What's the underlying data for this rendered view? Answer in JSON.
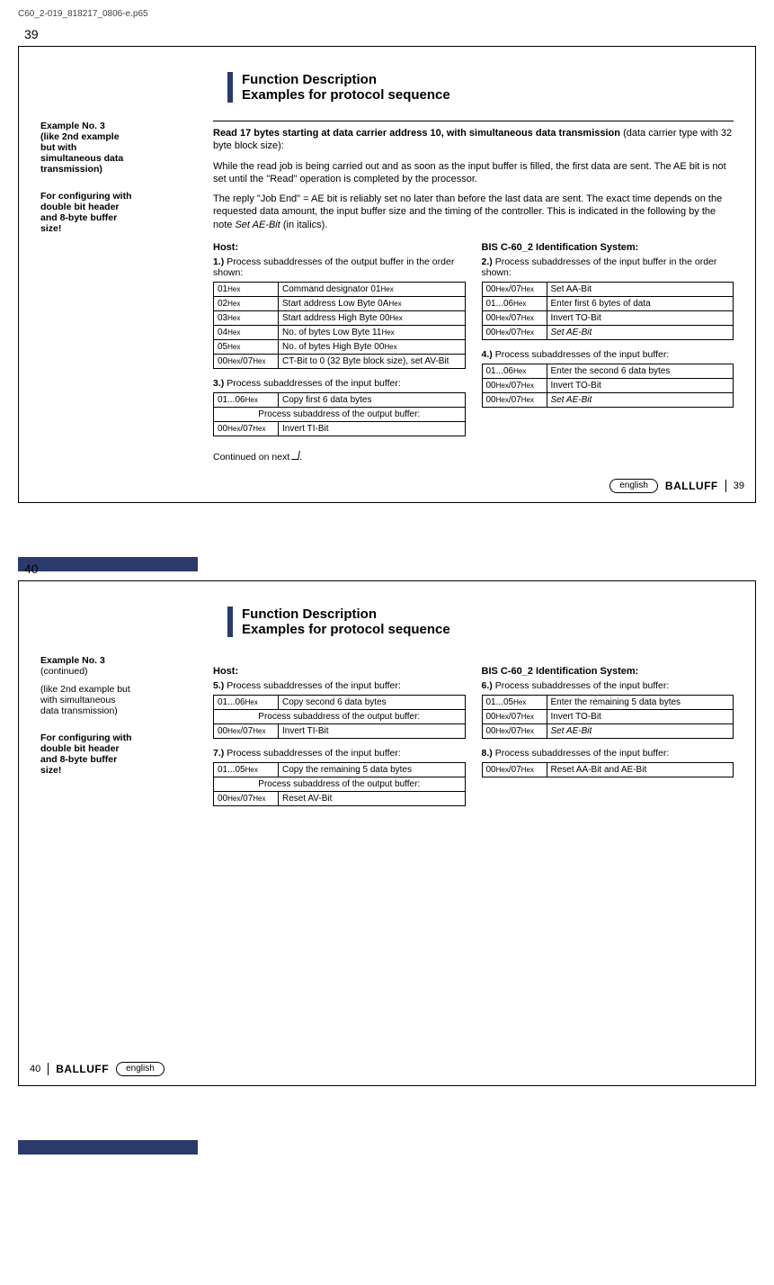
{
  "doc_header": "C60_2-019_818217_0806-e.p65",
  "colors": {
    "accent": "#2a3a6a",
    "text": "#000000",
    "bg": "#ffffff"
  },
  "page39": {
    "page_number": "39",
    "title_1": "Function Description",
    "title_2": "Examples for protocol sequence",
    "side_block_1_lines": [
      "Example No. 3",
      "(like 2nd example",
      "but with",
      "simultaneous data",
      "transmission)"
    ],
    "side_block_2_lines": [
      "For configuring with",
      "double bit header",
      "and 8-byte buffer",
      "size!"
    ],
    "intro_bold": "Read 17 bytes starting at data carrier address 10, with simultaneous data transmission",
    "intro_bold_sub": "(data carrier type with 32 byte block size):",
    "intro_p1": "While the read job is being carried out and as soon as the input buffer is filled, the first data are sent. The AE bit is not set until the \"Read\" operation is completed by the processor.",
    "intro_p2_a": "The reply \"Job End\" = AE bit is reliably set no later than before the last data are sent. The exact time depends on the requested data amount, the input buffer size and the timing of the controller. This is indicated in the following by the note ",
    "intro_p2_ital": "Set AE-Bit",
    "intro_p2_b": " (in italics).",
    "host_heading": "Host:",
    "sys_heading": "BIS C-60_2 Identification System:",
    "step1_label": "1.)  Process subaddresses of the output buffer in the order shown:",
    "step1_rows": [
      [
        "01Hex",
        "Command designator 01Hex"
      ],
      [
        "02Hex",
        "Start address Low Byte 0AHex"
      ],
      [
        "03Hex",
        "Start address High Byte 00Hex"
      ],
      [
        "04Hex",
        "No. of bytes Low Byte 11Hex"
      ],
      [
        "05Hex",
        "No. of bytes High Byte 00Hex"
      ],
      [
        "00Hex/07Hex",
        "CT-Bit to 0 (32 Byte block size), set AV-Bit"
      ]
    ],
    "step2_label": "2.)  Process subaddresses of the input buffer in the order shown:",
    "step2_rows": [
      [
        "00Hex/07Hex",
        "Set AA-Bit"
      ],
      [
        "01...06Hex",
        "Enter first 6 bytes of data"
      ],
      [
        "00Hex/07Hex",
        "Invert TO-Bit"
      ],
      [
        "00Hex/07Hex",
        "Set AE-Bit",
        true
      ]
    ],
    "step3_label": "3.)  Process subaddresses of the input buffer:",
    "step3_rows": [
      [
        "01...06Hex",
        "Copy first 6 data bytes"
      ]
    ],
    "step3_span": "Process subaddress of the output buffer:",
    "step3_rows2": [
      [
        "00Hex/07Hex",
        "Invert TI-Bit"
      ]
    ],
    "step4_label": "4.)  Process subaddresses of the input buffer:",
    "step4_rows": [
      [
        "01...06Hex",
        "Enter the second 6 data bytes"
      ],
      [
        "00Hex/07Hex",
        "Invert TO-Bit"
      ],
      [
        "00Hex/07Hex",
        "Set AE-Bit",
        true
      ]
    ],
    "continued": "Continued on next ",
    "footer_lang": "english",
    "footer_brand": "BALLUFF",
    "footer_page": "39"
  },
  "page40": {
    "page_number": "40",
    "title_1": "Function Description",
    "title_2": "Examples for protocol sequence",
    "side_block_1_lines": [
      "Example No. 3",
      "(continued)"
    ],
    "side_block_1b_lines": [
      "(like 2nd example but",
      "with simultaneous",
      "data transmission)"
    ],
    "side_block_2_lines": [
      "For configuring with",
      "double bit header",
      "and 8-byte buffer",
      "size!"
    ],
    "host_heading": "Host:",
    "sys_heading": "BIS C-60_2 Identification System:",
    "step5_label": "5.)  Process subaddresses of the input buffer:",
    "step5_rows": [
      [
        "01...06Hex",
        "Copy second 6 data bytes"
      ]
    ],
    "step5_span": "Process subaddress of the output buffer:",
    "step5_rows2": [
      [
        "00Hex/07Hex",
        "Invert TI-Bit"
      ]
    ],
    "step6_label": "6.)  Process subaddresses of the input buffer:",
    "step6_rows": [
      [
        "01...05Hex",
        "Enter the remaining 5 data bytes"
      ],
      [
        "00Hex/07Hex",
        "Invert TO-Bit"
      ],
      [
        "00Hex/07Hex",
        "Set AE-Bit",
        true
      ]
    ],
    "step7_label": "7.)  Process subaddresses of the input buffer:",
    "step7_rows": [
      [
        "01...05Hex",
        "Copy the remaining 5 data bytes"
      ]
    ],
    "step7_span": "Process subaddress of the output buffer:",
    "step7_rows2": [
      [
        "00Hex/07Hex",
        "Reset AV-Bit"
      ]
    ],
    "step8_label": "8.)  Process subaddresses of the input buffer:",
    "step8_rows": [
      [
        "00Hex/07Hex",
        "Reset AA-Bit and AE-Bit"
      ]
    ],
    "footer_lang": "english",
    "footer_brand": "BALLUFF",
    "footer_page": "40"
  }
}
